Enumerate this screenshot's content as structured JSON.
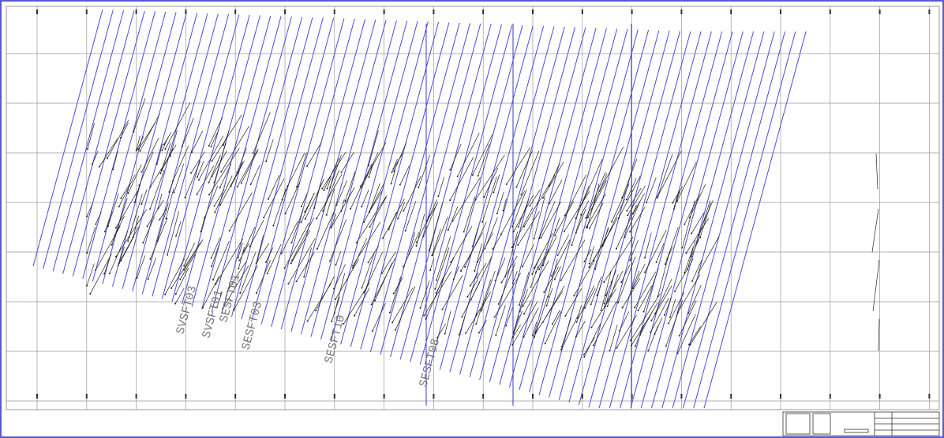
{
  "labels": [
    "SVSFT03",
    "SVSFT01",
    "SESFT01",
    "SESFT03",
    "SESFT10",
    "SESFT08"
  ]
}
